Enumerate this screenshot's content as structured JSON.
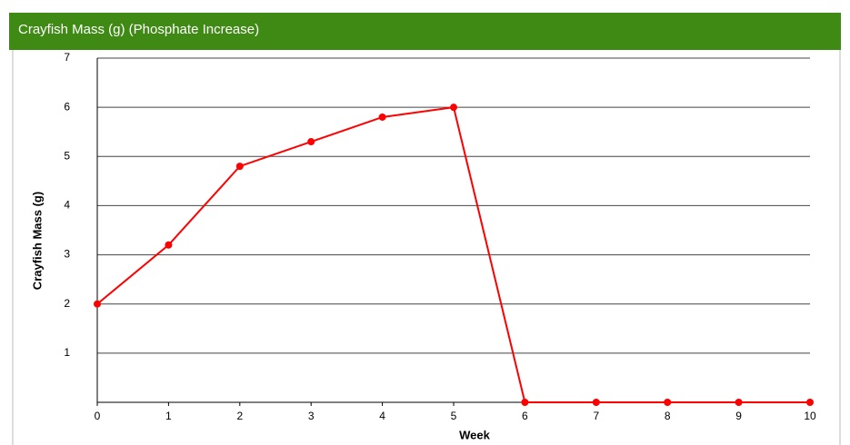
{
  "chart_data": {
    "type": "line",
    "title": "Crayfish Mass (g) (Phosphate Increase)",
    "x_label": "Week",
    "y_label": "Crayfish Mass (g)",
    "x": [
      0,
      1,
      2,
      3,
      4,
      5,
      6,
      7,
      8,
      9,
      10
    ],
    "series": [
      {
        "name": "Crayfish Mass (g)",
        "color": "#ff0000",
        "values": [
          2,
          3.2,
          4.8,
          5.3,
          5.8,
          6,
          0,
          0,
          0,
          0,
          0
        ]
      }
    ],
    "xlim": [
      0,
      10
    ],
    "xticks": [
      0,
      1,
      2,
      3,
      4,
      5,
      6,
      7,
      8,
      9,
      10
    ],
    "ylim": [
      0,
      7
    ],
    "yticks": [
      1,
      2,
      3,
      4,
      5,
      6,
      7
    ],
    "grid": true,
    "header_color": "#3f8a14"
  }
}
